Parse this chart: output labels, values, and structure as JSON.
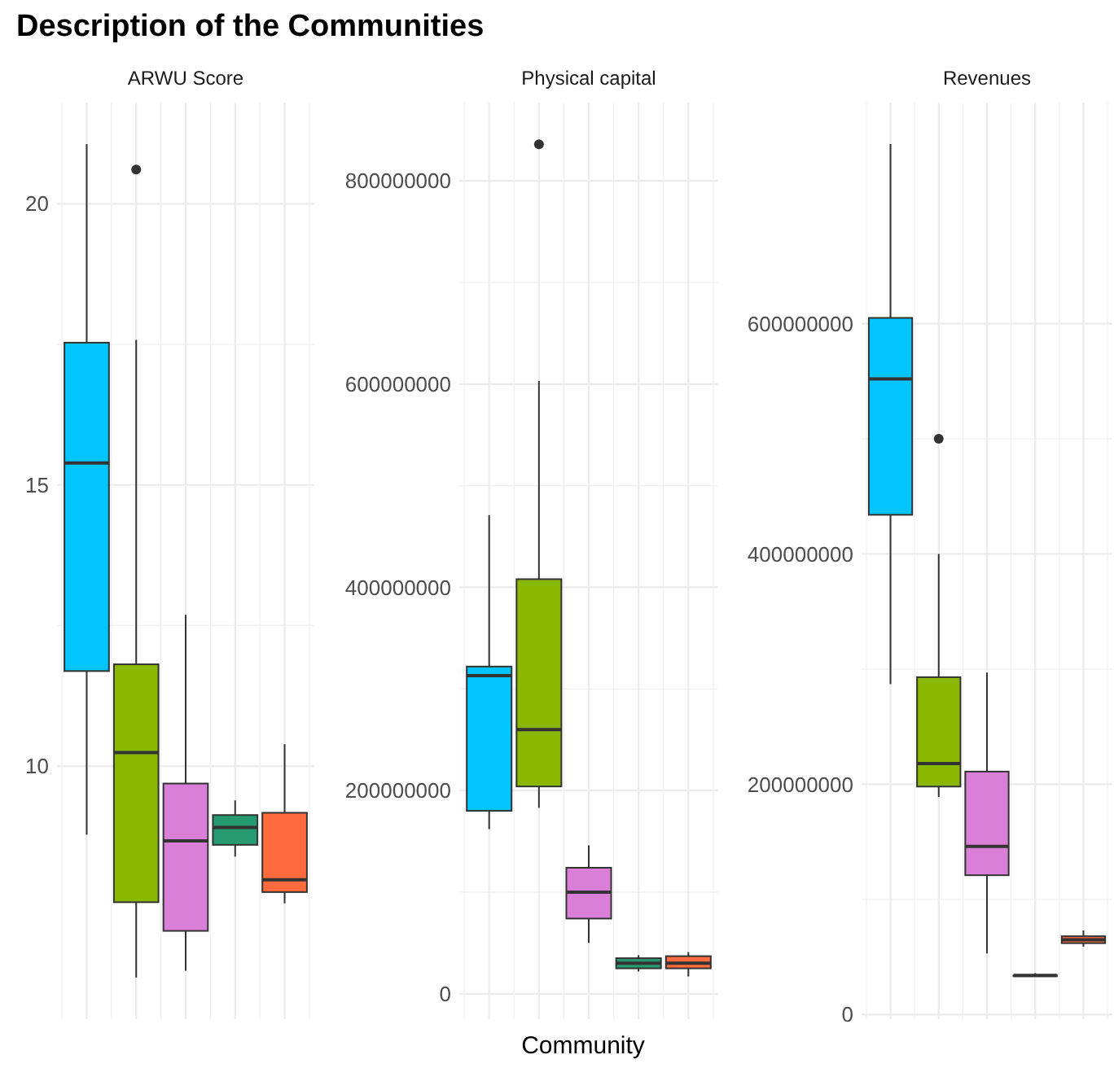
{
  "chart_data": [
    {
      "type": "box",
      "title": "Description of the Communities",
      "subtitle": "ARWU Score",
      "categories": [
        null,
        null,
        null,
        null,
        null
      ],
      "colors": [
        "#00c5ff",
        "#8ab800",
        "#da7fd8",
        "#269b72",
        "#ff6b3d"
      ],
      "ylim": [
        5.5,
        21.8
      ],
      "yticks": [
        10,
        15,
        20
      ],
      "grid": true,
      "tick_labels": "y",
      "boxes": [
        {
          "low": 8.78,
          "q1": 11.69,
          "median": 15.39,
          "q3": 17.53,
          "high": 21.06
        },
        {
          "low": 6.24,
          "q1": 7.58,
          "median": 10.24,
          "q3": 11.81,
          "high": 17.58,
          "outliers": [
            20.61
          ]
        },
        {
          "low": 6.36,
          "q1": 7.07,
          "median": 8.67,
          "q3": 9.69,
          "high": 12.69
        },
        {
          "low": 8.39,
          "q1": 8.6,
          "median": 8.91,
          "q3": 9.13,
          "high": 9.39
        },
        {
          "low": 7.56,
          "q1": 7.76,
          "median": 7.98,
          "q3": 9.17,
          "high": 10.39
        }
      ]
    },
    {
      "type": "box",
      "subtitle": "Physical capital",
      "xlabel": "Community",
      "categories": [
        null,
        null,
        null,
        null,
        null
      ],
      "colors": [
        "#00c5ff",
        "#8ab800",
        "#da7fd8",
        "#269b72",
        "#ff6b3d"
      ],
      "ylim": [
        -25000000,
        877000000
      ],
      "yticks": [
        0,
        200000000,
        400000000,
        600000000,
        800000000
      ],
      "grid": true,
      "tick_labels": "y",
      "boxes": [
        {
          "low": 162000000,
          "q1": 180000000,
          "median": 313000000,
          "q3": 322000000,
          "high": 471000000
        },
        {
          "low": 183000000,
          "q1": 204000000,
          "median": 260000000,
          "q3": 408000000,
          "high": 603000000,
          "outliers": [
            836000000
          ]
        },
        {
          "low": 50000000,
          "q1": 74000000,
          "median": 100000000,
          "q3": 124000000,
          "high": 146000000
        },
        {
          "low": 22000000,
          "q1": 25000000,
          "median": 30000000,
          "q3": 35000000,
          "high": 38000000
        },
        {
          "low": 17000000,
          "q1": 25000000,
          "median": 30000000,
          "q3": 37000000,
          "high": 41000000
        }
      ]
    },
    {
      "type": "box",
      "subtitle": "Revenues",
      "categories": [
        null,
        null,
        null,
        null,
        null
      ],
      "colors": [
        "#00c5ff",
        "#8ab800",
        "#da7fd8",
        "#269b72",
        "#ff6b3d"
      ],
      "ylim": [
        -4000000,
        792000000
      ],
      "yticks": [
        0,
        200000000,
        400000000,
        600000000
      ],
      "grid": true,
      "tick_labels": "y",
      "boxes": [
        {
          "low": 287000000,
          "q1": 434000000,
          "median": 552000000,
          "q3": 605000000,
          "high": 756000000
        },
        {
          "low": 189000000,
          "q1": 198000000,
          "median": 218000000,
          "q3": 293000000,
          "high": 400000000,
          "outliers": [
            500000000
          ]
        },
        {
          "low": 53000000,
          "q1": 121000000,
          "median": 146000000,
          "q3": 211000000,
          "high": 297000000
        },
        {
          "low": 33000000,
          "q1": 34000000,
          "median": 34000000,
          "q3": 34000000,
          "high": 36000000
        },
        {
          "low": 59000000,
          "q1": 62000000,
          "median": 65000000,
          "q3": 68000000,
          "high": 73000000
        }
      ]
    }
  ]
}
